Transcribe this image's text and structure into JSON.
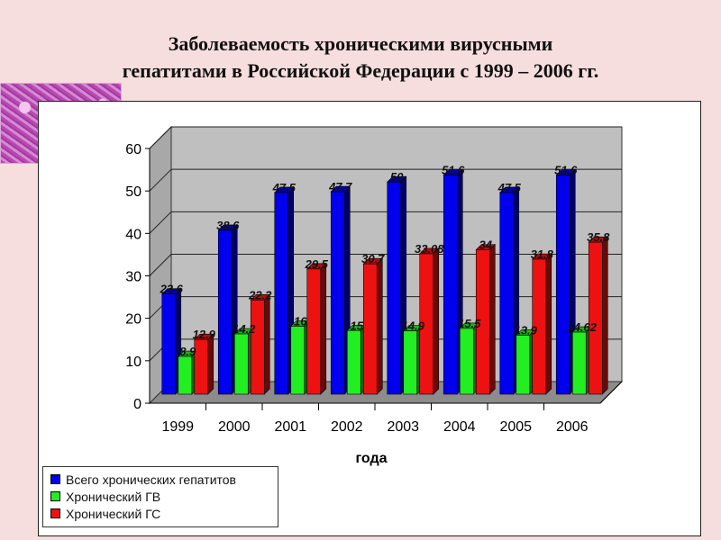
{
  "title_lines": [
    "Заболеваемость  хроническими вирусными",
    "гепатитами в Российской Федерации  с 1999 – 2006 гг."
  ],
  "chart_data": {
    "type": "bar",
    "categories": [
      "1999",
      "2000",
      "2001",
      "2002",
      "2003",
      "2004",
      "2005",
      "2006"
    ],
    "xlabel": "года",
    "ylabel": "",
    "ylim": [
      0,
      60
    ],
    "yticks": [
      0,
      10,
      20,
      30,
      40,
      50,
      60
    ],
    "grid": true,
    "legend_position": "bottom-left",
    "series": [
      {
        "name": "Всего хронических гепатитов",
        "color": "#0000ee",
        "values": [
          23.6,
          38.6,
          47.5,
          47.7,
          50,
          51.6,
          47.5,
          51.6
        ],
        "labels": [
          "23.6",
          "38.6",
          "47.5",
          "47.7",
          "50",
          "51.6",
          "47.5",
          "51.6"
        ]
      },
      {
        "name": "Хронический ГВ",
        "color": "#22ee22",
        "values": [
          8.9,
          14.2,
          16,
          15,
          14.9,
          15.5,
          13.9,
          14.62
        ],
        "labels": [
          "8.9",
          "14.2",
          "16",
          "15",
          "14.9",
          "15.5",
          "13.9",
          "14.62"
        ]
      },
      {
        "name": "Хронический ГС",
        "color": "#ee1111",
        "values": [
          12.9,
          22.2,
          29.5,
          30.7,
          33.08,
          34,
          31.8,
          35.8
        ],
        "labels": [
          "12.9",
          "22.2",
          "29.5",
          "30.7",
          "33.08",
          "34",
          "31.8",
          "35.8"
        ]
      }
    ]
  }
}
